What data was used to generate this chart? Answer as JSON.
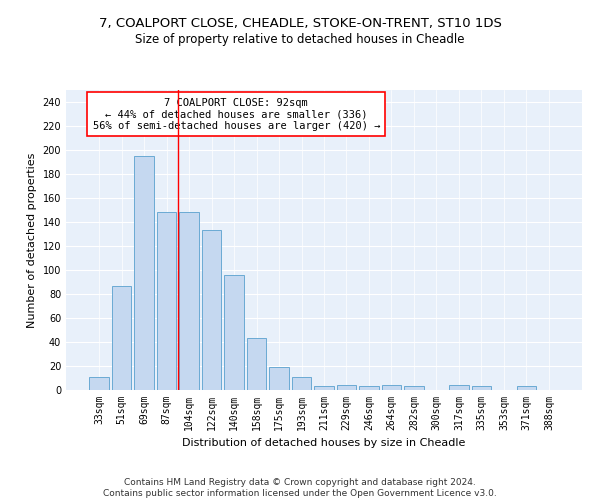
{
  "title1": "7, COALPORT CLOSE, CHEADLE, STOKE-ON-TRENT, ST10 1DS",
  "title2": "Size of property relative to detached houses in Cheadle",
  "xlabel": "Distribution of detached houses by size in Cheadle",
  "ylabel": "Number of detached properties",
  "categories": [
    "33sqm",
    "51sqm",
    "69sqm",
    "87sqm",
    "104sqm",
    "122sqm",
    "140sqm",
    "158sqm",
    "175sqm",
    "193sqm",
    "211sqm",
    "229sqm",
    "246sqm",
    "264sqm",
    "282sqm",
    "300sqm",
    "317sqm",
    "335sqm",
    "353sqm",
    "371sqm",
    "388sqm"
  ],
  "values": [
    11,
    87,
    195,
    148,
    148,
    133,
    96,
    43,
    19,
    11,
    3,
    4,
    3,
    4,
    3,
    0,
    4,
    3,
    0,
    3,
    0
  ],
  "bar_color": "#c5d8f0",
  "bar_edge_color": "#6aaad4",
  "vline_x": 3.5,
  "vline_color": "red",
  "annotation_text": "7 COALPORT CLOSE: 92sqm\n← 44% of detached houses are smaller (336)\n56% of semi-detached houses are larger (420) →",
  "annotation_box_color": "white",
  "annotation_box_edge_color": "red",
  "ylim": [
    0,
    250
  ],
  "yticks": [
    0,
    20,
    40,
    60,
    80,
    100,
    120,
    140,
    160,
    180,
    200,
    220,
    240
  ],
  "bg_color": "#e8f0fa",
  "footer": "Contains HM Land Registry data © Crown copyright and database right 2024.\nContains public sector information licensed under the Open Government Licence v3.0.",
  "title1_fontsize": 9.5,
  "title2_fontsize": 8.5,
  "xlabel_fontsize": 8,
  "ylabel_fontsize": 8,
  "tick_fontsize": 7,
  "annotation_fontsize": 7.5,
  "footer_fontsize": 6.5
}
